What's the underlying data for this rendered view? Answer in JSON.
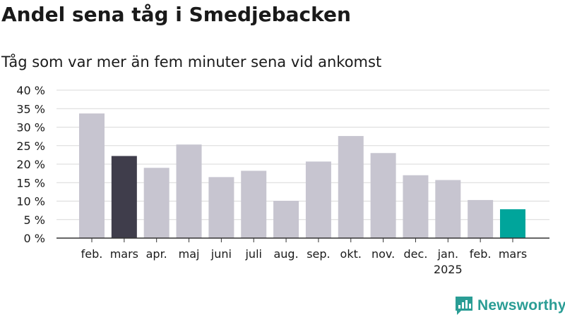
{
  "title": "Andel sena tåg i Smedjebacken",
  "subtitle": "Tåg som var mer än fem minuter sena vid ankomst",
  "brand": "Newsworthy",
  "colors": {
    "bar_default": "#c7c5d0",
    "bar_dark": "#3f3d4b",
    "bar_teal": "#00a59b",
    "grid": "#d9d9d9",
    "axis": "#333333",
    "brand": "#2a9d95"
  },
  "chart_data": {
    "type": "bar",
    "categories": [
      "feb.",
      "mars",
      "apr.",
      "maj",
      "juni",
      "juli",
      "aug.",
      "sep.",
      "okt.",
      "nov.",
      "dec.",
      "jan.",
      "feb.",
      "mars"
    ],
    "category_sublabels": [
      "",
      "",
      "",
      "",
      "",
      "",
      "",
      "",
      "",
      "",
      "",
      "2025",
      "",
      ""
    ],
    "values": [
      33.7,
      22.2,
      19.0,
      25.3,
      16.5,
      18.2,
      10.1,
      20.7,
      27.6,
      23.0,
      17.0,
      15.7,
      10.3,
      7.8
    ],
    "highlight": [
      "default",
      "dark",
      "default",
      "default",
      "default",
      "default",
      "default",
      "default",
      "default",
      "default",
      "default",
      "default",
      "default",
      "teal"
    ],
    "yticks": [
      "0 %",
      "5 %",
      "10 %",
      "15 %",
      "20 %",
      "25 %",
      "30 %",
      "35 %",
      "40 %"
    ],
    "ylim": [
      0,
      40
    ],
    "grid": true
  }
}
